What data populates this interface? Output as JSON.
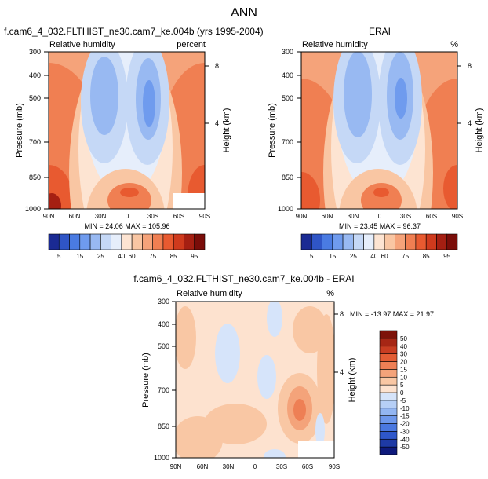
{
  "figure": {
    "title": "ANN"
  },
  "colors": {
    "rh_levels": [
      "#1a2a93",
      "#2f55c6",
      "#4a7be2",
      "#6f9bee",
      "#98b9f2",
      "#c5d8f6",
      "#e6eefb",
      "#fde4d2",
      "#f9c6a3",
      "#f5a37a",
      "#f07f52",
      "#e85a30",
      "#cf3a1d",
      "#a51f12",
      "#7a0d09"
    ],
    "diff_levels": [
      "#0e1a7c",
      "#1e3aa5",
      "#2e57cb",
      "#4a78e0",
      "#6e98ec",
      "#93b6f2",
      "#b6cff6",
      "#d6e4fa",
      "#fde2cf",
      "#f9c7a4",
      "#f4a37a",
      "#ee7f55",
      "#e35d35",
      "#c83d22",
      "#a62615",
      "#7d1209"
    ]
  },
  "chart_data": [
    {
      "type": "heatmap",
      "title": "f.cam6_4_032.FLTHIST_ne30.cam7_ke.004b (yrs 1995-2004)",
      "subtitle_left": "Relative humidity",
      "subtitle_right": "percent",
      "xlabel": "",
      "ylabel": "Pressure (mb)",
      "ylabel_right": "Height (km)",
      "x_ticks": [
        "90N",
        "60N",
        "30N",
        "0",
        "30S",
        "60S",
        "90S"
      ],
      "y_ticks": [
        "300",
        "400",
        "500",
        "700",
        "850",
        "1000"
      ],
      "y_ticks_right": [
        "8",
        "4"
      ],
      "stats": "MIN =  24.06   MAX = 105.96",
      "min": 24.06,
      "max": 105.96,
      "colorbar_labels": [
        "5",
        "15",
        "25",
        "40",
        "60",
        "75",
        "85",
        "95"
      ]
    },
    {
      "type": "heatmap",
      "title": "ERAI",
      "subtitle_left": "Relative humidity",
      "subtitle_right": "%",
      "xlabel": "",
      "ylabel": "Pressure (mb)",
      "ylabel_right": "Height (km)",
      "x_ticks": [
        "90N",
        "60N",
        "30N",
        "0",
        "30S",
        "60S",
        "90S"
      ],
      "y_ticks": [
        "300",
        "400",
        "500",
        "700",
        "850",
        "1000"
      ],
      "y_ticks_right": [
        "8",
        "4"
      ],
      "stats": "MIN =  23.45   MAX =  96.37",
      "min": 23.45,
      "max": 96.37,
      "colorbar_labels": [
        "5",
        "15",
        "25",
        "40",
        "60",
        "75",
        "85",
        "95"
      ]
    },
    {
      "type": "heatmap",
      "title": "f.cam6_4_032.FLTHIST_ne30.cam7_ke.004b - ERAI",
      "subtitle_left": "Relative humidity",
      "subtitle_right": "%",
      "xlabel": "",
      "ylabel": "Pressure (mb)",
      "ylabel_right": "Height (km)",
      "x_ticks": [
        "90N",
        "60N",
        "30N",
        "0",
        "30S",
        "60S",
        "90S"
      ],
      "y_ticks": [
        "300",
        "400",
        "500",
        "700",
        "850",
        "1000"
      ],
      "y_ticks_right": [
        "8",
        "4"
      ],
      "stats": "MIN = -13.97   MAX =  21.97",
      "min": -13.97,
      "max": 21.97,
      "colorbar_labels": [
        "50",
        "40",
        "30",
        "20",
        "15",
        "10",
        "5",
        "0",
        "-5",
        "-10",
        "-15",
        "-20",
        "-30",
        "-40",
        "-50"
      ]
    }
  ]
}
